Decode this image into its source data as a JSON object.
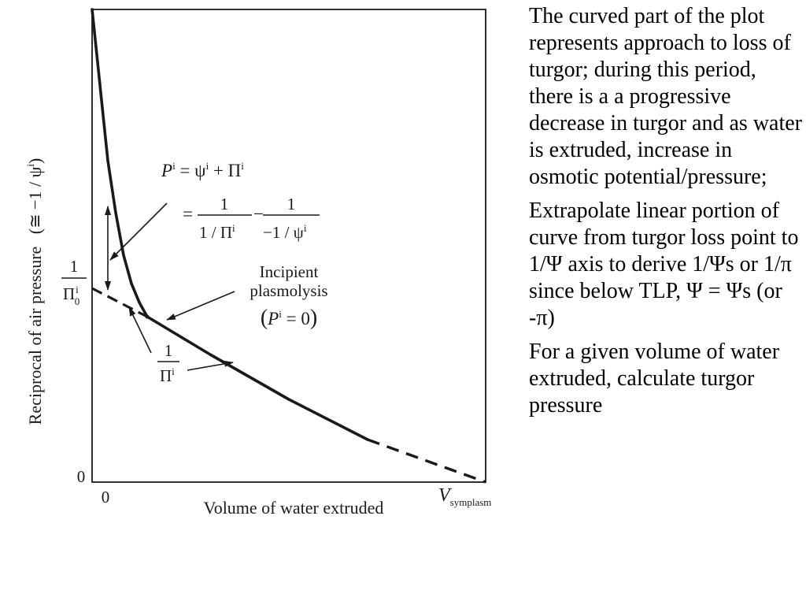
{
  "chart_data": {
    "type": "line",
    "ylabel": "Reciprocal of air pressure",
    "ylabel_approx": "(≅ −1 / ψ",
    "ylabel_approx_sup": "i",
    "ylabel_approx_close": ")",
    "xlabel": "Volume of water extruded",
    "x_tick_zero": "0",
    "y_tick_zero": "0",
    "y_intercept_label": {
      "num": "1",
      "den": "Π",
      "den_sup": "i",
      "den_sub": "0"
    },
    "x_intercept_label": {
      "main": "V",
      "sub": "symplasm"
    },
    "xlim": [
      0,
      1
    ],
    "ylim": [
      0,
      1
    ],
    "y_intercept_value": 0.41,
    "x_intercept_value": 1.0,
    "turgor_loss_point": [
      0.14,
      0.35
    ],
    "series": [
      {
        "style": "solid",
        "points": [
          [
            0.0,
            1.0
          ],
          [
            0.02,
            0.84
          ],
          [
            0.04,
            0.68
          ],
          [
            0.06,
            0.57
          ],
          [
            0.08,
            0.48
          ],
          [
            0.1,
            0.42
          ],
          [
            0.12,
            0.38
          ],
          [
            0.14,
            0.35
          ],
          [
            0.3,
            0.27
          ],
          [
            0.5,
            0.175
          ],
          [
            0.7,
            0.09
          ]
        ]
      },
      {
        "style": "solid-extrapolated",
        "points": [
          [
            0.0,
            0.41
          ],
          [
            0.14,
            0.35
          ]
        ]
      },
      {
        "style": "dashed",
        "points": [
          [
            0.7,
            0.09
          ],
          [
            1.0,
            0.0
          ]
        ]
      }
    ],
    "annotations": {
      "equation_line1": {
        "p": "P",
        "p_sup": "i",
        "rest": " = ψ",
        "psi_sup": "i",
        "plus": " + Π",
        "pi_sup": "i"
      },
      "equation_line2": {
        "eq": "=",
        "f1_num": "1",
        "f1_den": "1 / Π",
        "f1_den_sup": "i",
        "minus": "−",
        "f2_num": "1",
        "f2_den": "−1 / ψ",
        "f2_den_sup": "i"
      },
      "incipient_line1": "Incipient",
      "incipient_line2": "plasmolysis",
      "incipient_line3": {
        "open": "(",
        "p": "P",
        "p_sup": "i",
        "eq": " = 0",
        "close": ")"
      },
      "inverse_pi": {
        "num": "1",
        "den": "Π",
        "den_sup": "i"
      }
    }
  },
  "notes": [
    "The curved part of the plot represents approach to loss of turgor; during this period, there is a a progressive decrease in turgor and as water is extruded, increase in osmotic potential/pressure;",
    "Extrapolate linear portion of curve from turgor loss point to 1/Ψ axis to derive 1/Ψs or 1/π since below TLP,   Ψ = Ψs (or -π)",
    "For a given volume of water extruded, calculate turgor pressure"
  ]
}
